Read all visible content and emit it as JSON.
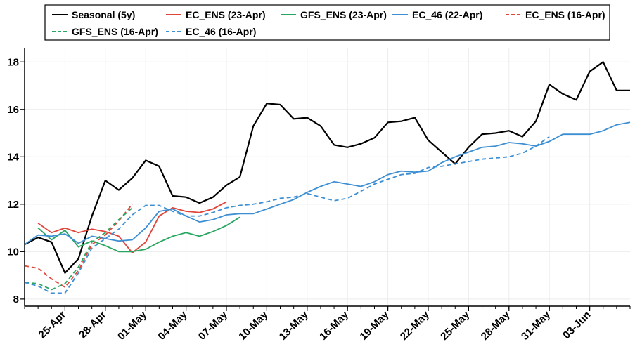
{
  "chart_data": {
    "type": "line",
    "title": "",
    "xlabel": "",
    "ylabel": "",
    "ylim": [
      7.7,
      18.6
    ],
    "yticks": [
      8,
      10,
      12,
      14,
      16,
      18
    ],
    "x_range_days": [
      0,
      45
    ],
    "x_ticks": [
      {
        "day": 3,
        "label": "25-Apr"
      },
      {
        "day": 6,
        "label": "28-Apr"
      },
      {
        "day": 9,
        "label": "01-May"
      },
      {
        "day": 12,
        "label": "04-May"
      },
      {
        "day": 15,
        "label": "07-May"
      },
      {
        "day": 18,
        "label": "10-May"
      },
      {
        "day": 21,
        "label": "13-May"
      },
      {
        "day": 24,
        "label": "16-May"
      },
      {
        "day": 27,
        "label": "19-May"
      },
      {
        "day": 30,
        "label": "22-May"
      },
      {
        "day": 33,
        "label": "25-May"
      },
      {
        "day": 36,
        "label": "28-May"
      },
      {
        "day": 39,
        "label": "31-May"
      },
      {
        "day": 42,
        "label": "03-Jun"
      }
    ],
    "grid": true,
    "legend_position": "top",
    "series": [
      {
        "name": "Seasonal (5y)",
        "color": "#000000",
        "dash": false,
        "x_start": 0,
        "values": [
          10.3,
          10.6,
          10.4,
          9.1,
          9.7,
          11.5,
          13.0,
          12.6,
          13.1,
          13.85,
          13.6,
          12.35,
          12.3,
          12.05,
          12.3,
          12.8,
          13.15,
          15.3,
          16.25,
          16.2,
          15.6,
          15.65,
          15.3,
          14.5,
          14.4,
          14.55,
          14.8,
          15.45,
          15.5,
          15.65,
          14.7,
          14.2,
          13.7,
          14.4,
          14.95,
          15.0,
          15.1,
          14.85,
          15.5,
          17.05,
          16.65,
          16.4,
          17.6,
          18.0,
          16.8,
          16.8
        ]
      },
      {
        "name": "EC_ENS (23-Apr)",
        "color": "#e0453a",
        "dash": false,
        "x_start": 1,
        "values": [
          11.2,
          10.8,
          11.0,
          10.8,
          10.95,
          10.85,
          10.65,
          9.95,
          10.4,
          11.5,
          11.85,
          11.7,
          11.65,
          11.8,
          12.1
        ]
      },
      {
        "name": "GFS_ENS (23-Apr)",
        "color": "#27a660",
        "dash": false,
        "x_start": 1,
        "values": [
          11.0,
          10.5,
          10.9,
          10.2,
          10.45,
          10.25,
          10.0,
          10.0,
          10.1,
          10.4,
          10.65,
          10.8,
          10.65,
          10.85,
          11.1,
          11.45
        ]
      },
      {
        "name": "EC_46 (22-Apr)",
        "color": "#3d8fd3",
        "dash": false,
        "x_start": 0,
        "values": [
          10.3,
          10.7,
          10.65,
          10.75,
          10.35,
          10.65,
          10.55,
          10.45,
          10.5,
          11.0,
          11.7,
          11.8,
          11.5,
          11.25,
          11.35,
          11.55,
          11.6,
          11.6,
          11.8,
          12.0,
          12.2,
          12.5,
          12.75,
          12.95,
          12.85,
          12.75,
          12.95,
          13.25,
          13.4,
          13.35,
          13.4,
          13.75,
          14.0,
          14.2,
          14.4,
          14.45,
          14.6,
          14.55,
          14.45,
          14.65,
          14.95,
          14.95,
          14.95,
          15.1,
          15.35,
          15.45
        ]
      },
      {
        "name": "EC_ENS (16-Apr)",
        "color": "#e0453a",
        "dash": true,
        "x_start": 0,
        "values": [
          9.4,
          9.3,
          8.85,
          8.5,
          9.2,
          10.3,
          10.7,
          11.3,
          12.0
        ]
      },
      {
        "name": "GFS_ENS (16-Apr)",
        "color": "#27a660",
        "dash": true,
        "x_start": 0,
        "values": [
          8.7,
          8.65,
          8.4,
          8.65,
          9.35,
          10.4,
          10.8,
          11.35,
          11.85
        ]
      },
      {
        "name": "EC_46 (16-Apr)",
        "color": "#3d8fd3",
        "dash": true,
        "x_start": 0,
        "values": [
          8.7,
          8.55,
          8.25,
          8.25,
          9.1,
          10.15,
          10.55,
          10.95,
          11.55,
          11.95,
          11.95,
          11.7,
          11.5,
          11.5,
          11.65,
          11.85,
          11.95,
          12.0,
          12.1,
          12.25,
          12.3,
          12.45,
          12.3,
          12.15,
          12.25,
          12.55,
          12.85,
          13.05,
          13.25,
          13.3,
          13.55,
          13.6,
          13.7,
          13.8,
          13.9,
          13.95,
          14.0,
          14.15,
          14.45,
          14.85
        ]
      }
    ]
  }
}
